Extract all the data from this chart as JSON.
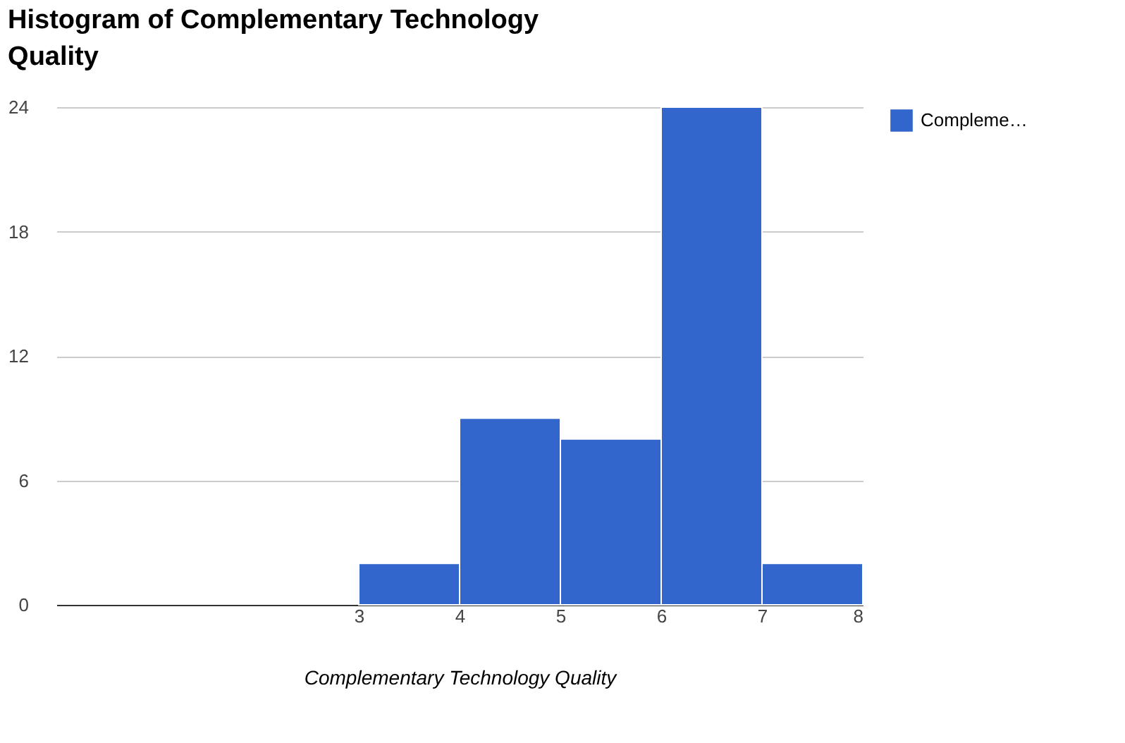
{
  "chart_data": {
    "type": "histogram",
    "title": "Histogram of Complementary Technology Quality",
    "xlabel": "Complementary Technology Quality",
    "bins": [
      3,
      4,
      5,
      6,
      7,
      8
    ],
    "series": [
      {
        "name": "Compleme…",
        "color": "#3366cc",
        "values": [
          2,
          9,
          8,
          24,
          2
        ]
      }
    ],
    "xlim": [
      0,
      8
    ],
    "xticks": [
      3,
      4,
      5,
      6,
      7,
      8
    ],
    "ylim": [
      0,
      24
    ],
    "yticks": [
      0,
      6,
      12,
      18,
      24
    ],
    "grid": "y",
    "legend": "right"
  }
}
